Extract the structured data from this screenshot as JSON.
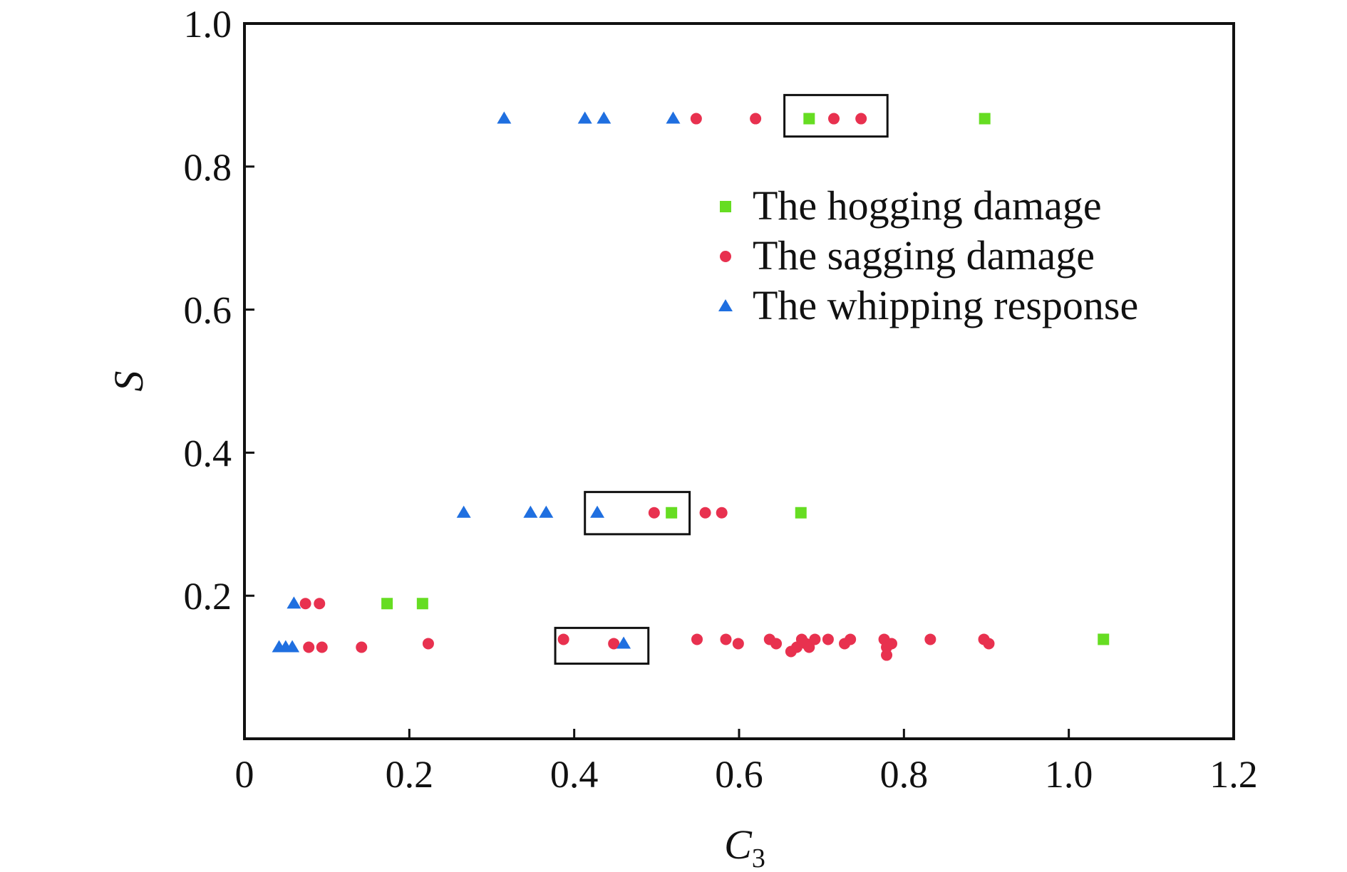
{
  "chart_data": {
    "type": "scatter",
    "xlabel": "C",
    "xlabel_subscript": "3",
    "ylabel": "S",
    "xlim": [
      0,
      1.2
    ],
    "ylim": [
      0,
      1.0
    ],
    "x_ticks": [
      {
        "value": 0,
        "label": "0"
      },
      {
        "value": 0.2,
        "label": "0.2"
      },
      {
        "value": 0.4,
        "label": "0.4"
      },
      {
        "value": 0.6,
        "label": "0.6"
      },
      {
        "value": 0.8,
        "label": "0.8"
      },
      {
        "value": 1.0,
        "label": "1.0"
      },
      {
        "value": 1.2,
        "label": "1.2"
      }
    ],
    "y_ticks": [
      {
        "value": 0.2,
        "label": "0.2"
      },
      {
        "value": 0.4,
        "label": "0.4"
      },
      {
        "value": 0.6,
        "label": "0.6"
      },
      {
        "value": 0.8,
        "label": "0.8"
      },
      {
        "value": 1.0,
        "label": "1.0"
      }
    ],
    "grid": false,
    "legend_placement": "top-right",
    "series": [
      {
        "name": "The hogging damage",
        "marker": "square",
        "color": "#66dd22",
        "points": [
          {
            "x": 0.685,
            "y": 0.867
          },
          {
            "x": 0.898,
            "y": 0.867
          },
          {
            "x": 0.518,
            "y": 0.316
          },
          {
            "x": 0.675,
            "y": 0.316
          },
          {
            "x": 0.173,
            "y": 0.189
          },
          {
            "x": 0.216,
            "y": 0.189
          },
          {
            "x": 1.042,
            "y": 0.139
          }
        ]
      },
      {
        "name": "The sagging damage",
        "marker": "circle",
        "color": "#e8314f",
        "points": [
          {
            "x": 0.548,
            "y": 0.867
          },
          {
            "x": 0.62,
            "y": 0.867
          },
          {
            "x": 0.715,
            "y": 0.867
          },
          {
            "x": 0.748,
            "y": 0.867
          },
          {
            "x": 0.497,
            "y": 0.316
          },
          {
            "x": 0.559,
            "y": 0.316
          },
          {
            "x": 0.579,
            "y": 0.316
          },
          {
            "x": 0.074,
            "y": 0.189
          },
          {
            "x": 0.091,
            "y": 0.189
          },
          {
            "x": 0.078,
            "y": 0.128
          },
          {
            "x": 0.094,
            "y": 0.128
          },
          {
            "x": 0.142,
            "y": 0.128
          },
          {
            "x": 0.223,
            "y": 0.133
          },
          {
            "x": 0.387,
            "y": 0.139
          },
          {
            "x": 0.448,
            "y": 0.133
          },
          {
            "x": 0.549,
            "y": 0.139
          },
          {
            "x": 0.584,
            "y": 0.139
          },
          {
            "x": 0.599,
            "y": 0.133
          },
          {
            "x": 0.637,
            "y": 0.139
          },
          {
            "x": 0.645,
            "y": 0.133
          },
          {
            "x": 0.663,
            "y": 0.122
          },
          {
            "x": 0.67,
            "y": 0.128
          },
          {
            "x": 0.676,
            "y": 0.139
          },
          {
            "x": 0.681,
            "y": 0.133
          },
          {
            "x": 0.685,
            "y": 0.128
          },
          {
            "x": 0.692,
            "y": 0.139
          },
          {
            "x": 0.708,
            "y": 0.139
          },
          {
            "x": 0.728,
            "y": 0.133
          },
          {
            "x": 0.735,
            "y": 0.139
          },
          {
            "x": 0.776,
            "y": 0.139
          },
          {
            "x": 0.779,
            "y": 0.128
          },
          {
            "x": 0.779,
            "y": 0.117
          },
          {
            "x": 0.785,
            "y": 0.133
          },
          {
            "x": 0.832,
            "y": 0.139
          },
          {
            "x": 0.897,
            "y": 0.139
          },
          {
            "x": 0.903,
            "y": 0.133
          }
        ]
      },
      {
        "name": "The whipping response",
        "marker": "triangle",
        "color": "#1f6fe0",
        "points": [
          {
            "x": 0.315,
            "y": 0.867
          },
          {
            "x": 0.413,
            "y": 0.867
          },
          {
            "x": 0.436,
            "y": 0.867
          },
          {
            "x": 0.52,
            "y": 0.867
          },
          {
            "x": 0.266,
            "y": 0.316
          },
          {
            "x": 0.347,
            "y": 0.316
          },
          {
            "x": 0.366,
            "y": 0.316
          },
          {
            "x": 0.428,
            "y": 0.316
          },
          {
            "x": 0.06,
            "y": 0.189
          },
          {
            "x": 0.042,
            "y": 0.128
          },
          {
            "x": 0.05,
            "y": 0.128
          },
          {
            "x": 0.058,
            "y": 0.128
          },
          {
            "x": 0.46,
            "y": 0.133
          }
        ]
      }
    ],
    "annotation_boxes": [
      {
        "x0": 0.655,
        "x1": 0.78,
        "y0": 0.842,
        "y1": 0.9
      },
      {
        "x0": 0.413,
        "x1": 0.54,
        "y0": 0.286,
        "y1": 0.345
      },
      {
        "x0": 0.377,
        "x1": 0.49,
        "y0": 0.105,
        "y1": 0.155
      }
    ]
  }
}
